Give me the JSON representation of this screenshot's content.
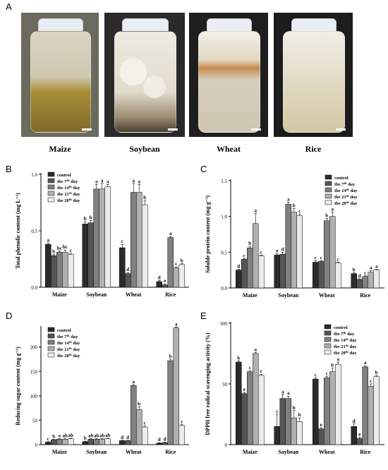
{
  "figure": {
    "panel_a_letter": "A",
    "photos": [
      {
        "name": "Maize",
        "bg": "#6b6a5f",
        "fill": "#b79a3e"
      },
      {
        "name": "Soybean",
        "bg": "#2a2a2a",
        "fill": "#e9e5da"
      },
      {
        "name": "Wheat",
        "bg": "#1e1e1e",
        "fill": "#d2cab7"
      },
      {
        "name": "Rice",
        "bg": "#1c1c1c",
        "fill": "#d8cfb2"
      }
    ]
  },
  "chart_data": [
    {
      "panel": "B",
      "type": "bar",
      "ylabel": "Total phenolic content (mg L⁻¹)",
      "ylim": [
        0,
        1.0
      ],
      "yticks": [
        "0.0",
        "0.5",
        "1.0"
      ],
      "categories": [
        "Maize",
        "Soybean",
        "Wheat",
        "Rice"
      ],
      "series": [
        {
          "name": "control",
          "values": [
            0.38,
            0.56,
            0.35,
            0.05
          ]
        },
        {
          "name": "the 7th day",
          "values": [
            0.28,
            0.57,
            0.12,
            0.02
          ]
        },
        {
          "name": "the 14th day",
          "values": [
            0.31,
            0.87,
            0.84,
            0.44
          ]
        },
        {
          "name": "the 21st day",
          "values": [
            0.31,
            0.87,
            0.84,
            0.17
          ]
        },
        {
          "name": "the 28th day",
          "values": [
            0.29,
            0.89,
            0.73,
            0.2
          ]
        }
      ],
      "errors": [
        [
          0.01,
          0.02,
          0.03,
          0.01
        ],
        [
          0.01,
          0.02,
          0.01,
          0.01
        ],
        [
          0.01,
          0.04,
          0.08,
          0.01
        ],
        [
          0.02,
          0.05,
          0.07,
          0.01
        ],
        [
          0.01,
          0.02,
          0.04,
          0.01
        ]
      ],
      "letters": [
        [
          "a",
          "b",
          "c",
          "d"
        ],
        [
          "b",
          "b",
          "d",
          "e"
        ],
        [
          "bc",
          "a",
          "a",
          "a"
        ],
        [
          "bc",
          "a",
          "a",
          "c"
        ],
        [
          "c",
          "a",
          "b",
          "b"
        ]
      ],
      "legend": "top-left"
    },
    {
      "panel": "C",
      "type": "bar",
      "ylabel": "Soluble protein content (mg g⁻¹)",
      "ylim": [
        0,
        1.5
      ],
      "yticks": [
        "0.0",
        "0.5",
        "1.0",
        "1.5"
      ],
      "categories": [
        "Maize",
        "Soybean",
        "Wheat",
        "Rice"
      ],
      "series": [
        {
          "name": "control",
          "values": [
            0.25,
            0.46,
            0.36,
            0.2
          ]
        },
        {
          "name": "the 7th day",
          "values": [
            0.4,
            0.47,
            0.37,
            0.12
          ]
        },
        {
          "name": "the 14th day",
          "values": [
            0.56,
            1.17,
            0.94,
            0.16
          ]
        },
        {
          "name": "the 21st day",
          "values": [
            0.9,
            1.06,
            1.0,
            0.22
          ]
        },
        {
          "name": "the 28th day",
          "values": [
            0.45,
            1.01,
            0.35,
            0.25
          ]
        }
      ],
      "errors": [
        [
          0.01,
          0.02,
          0.02,
          0.01
        ],
        [
          0.01,
          0.03,
          0.01,
          0.01
        ],
        [
          0.02,
          0.03,
          0.03,
          0.01
        ],
        [
          0.14,
          0.05,
          0.06,
          0.02
        ],
        [
          0.01,
          0.02,
          0.01,
          0.01
        ]
      ],
      "letters": [
        [
          "d",
          "e",
          "c",
          "b"
        ],
        [
          "c",
          "d",
          "c",
          "d"
        ],
        [
          "b",
          "a",
          "b",
          "c"
        ],
        [
          "a",
          "b",
          "a",
          "a"
        ],
        [
          "c",
          "c",
          "c",
          "a"
        ]
      ],
      "legend": "top-right"
    },
    {
      "panel": "D",
      "type": "bar",
      "ylabel": "Reducing sugar content (mg g⁻¹)",
      "ylim": [
        0,
        240
      ],
      "yticks": [
        "0",
        "50",
        "100",
        "150",
        "200"
      ],
      "categories": [
        "Maize",
        "Soybean",
        "Wheat",
        "Rice"
      ],
      "series": [
        {
          "name": "control",
          "values": [
            5,
            6,
            8,
            3
          ]
        },
        {
          "name": "the 7th day",
          "values": [
            10,
            11,
            8,
            4
          ]
        },
        {
          "name": "the 14th day",
          "values": [
            11,
            11,
            121,
            172
          ]
        },
        {
          "name": "the 21st day",
          "values": [
            11,
            11,
            72,
            239
          ]
        },
        {
          "name": "the 28th day",
          "values": [
            12,
            12,
            36,
            39
          ]
        }
      ],
      "errors": [
        [
          1,
          1,
          1,
          1
        ],
        [
          1,
          1,
          1,
          1
        ],
        [
          1,
          1,
          2,
          3
        ],
        [
          1,
          1,
          5,
          2
        ],
        [
          1,
          1,
          2,
          2
        ]
      ],
      "letters": [
        [
          "c",
          "b",
          "d",
          "d"
        ],
        [
          "b",
          "ab",
          "d",
          "d"
        ],
        [
          "a",
          "ab",
          "a",
          "b"
        ],
        [
          "ab",
          "ab",
          "b",
          "a"
        ],
        [
          "ab",
          "ab",
          "c",
          "c"
        ]
      ],
      "legend": "top-left"
    },
    {
      "panel": "E",
      "type": "bar",
      "ylabel": "DPPH free radical scavenging activity (%)",
      "ylim": [
        0,
        100
      ],
      "yticks": [
        "0",
        "50",
        "100"
      ],
      "categories": [
        "Maize",
        "Soybean",
        "Wheat",
        "Rice"
      ],
      "series": [
        {
          "name": "control",
          "values": [
            68,
            15,
            54,
            15
          ]
        },
        {
          "name": "the 7th day",
          "values": [
            42,
            38,
            13,
            5
          ]
        },
        {
          "name": "the 14th day",
          "values": [
            60,
            38,
            55,
            64
          ]
        },
        {
          "name": "the 21st day",
          "values": [
            75,
            22,
            60,
            48
          ]
        },
        {
          "name": "the 28th day",
          "values": [
            57,
            19,
            66,
            56
          ]
        }
      ],
      "errors": [
        [
          1,
          10,
          1,
          2
        ],
        [
          1,
          3,
          1,
          1
        ],
        [
          1,
          2,
          1,
          1
        ],
        [
          1,
          6,
          3,
          2
        ],
        [
          1,
          3,
          2,
          1
        ]
      ],
      "letters": [
        [
          "b",
          "c",
          "c",
          "d"
        ],
        [
          "e",
          "a",
          "e",
          "e"
        ],
        [
          "c",
          "a",
          "c",
          "a"
        ],
        [
          "a",
          "b",
          "b",
          "c"
        ],
        [
          "c",
          "b",
          "a",
          "b"
        ]
      ],
      "legend": "top-right"
    }
  ],
  "legend_labels": [
    {
      "base": "control",
      "sup": ""
    },
    {
      "base": "the 7",
      "sup": "th",
      "tail": " day"
    },
    {
      "base": "the 14",
      "sup": "th",
      "tail": " day"
    },
    {
      "base": "the 21",
      "sup": "th",
      "tail": " day"
    },
    {
      "base": "the 28",
      "sup": "th",
      "tail": " day"
    }
  ],
  "bar_colors": [
    "#2b2b2b",
    "#555555",
    "#808080",
    "#b0b0b0",
    "#ececec"
  ]
}
